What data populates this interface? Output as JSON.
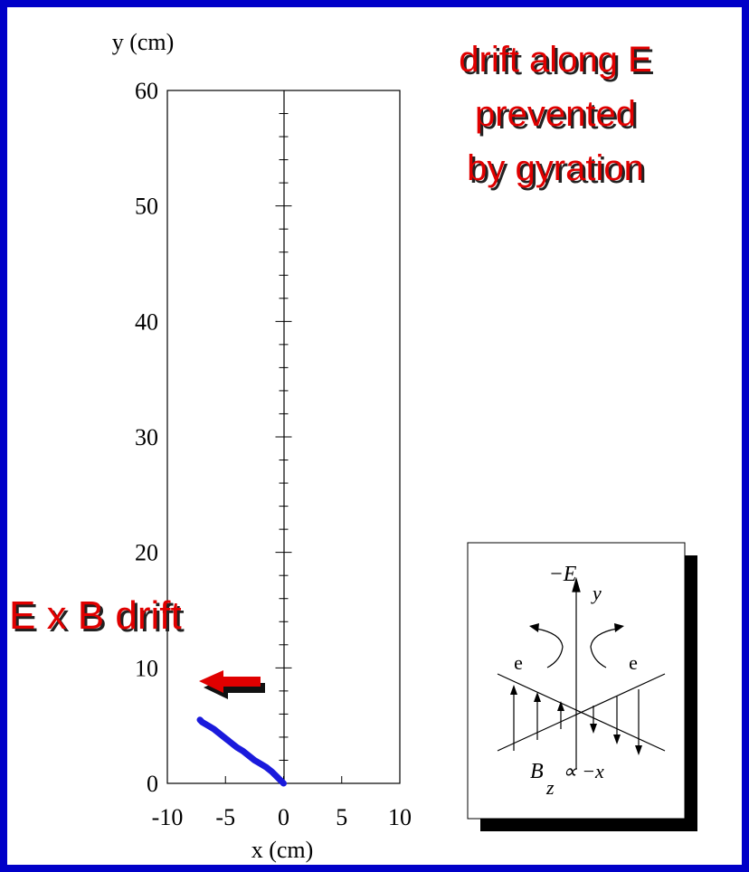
{
  "chart_data": {
    "type": "line",
    "title_lines": [
      "drift along E",
      "prevented",
      "by gyration"
    ],
    "annotation": "E x B drift",
    "xlabel": "x (cm)",
    "ylabel": "y (cm)",
    "x": [
      0,
      -0.5,
      -1,
      -1.5,
      -2,
      -2.5,
      -3,
      -3.5,
      -4,
      -4.5,
      -5,
      -5.5,
      -6,
      -6.5,
      -7,
      -7.2
    ],
    "values": [
      0,
      0.5,
      1.0,
      1.4,
      1.7,
      2.0,
      2.4,
      2.8,
      3.1,
      3.5,
      3.9,
      4.3,
      4.7,
      5.0,
      5.3,
      5.5
    ],
    "color": "#1a1adc",
    "xlim": [
      -10,
      10
    ],
    "ylim": [
      0,
      60
    ],
    "xticks": [
      -10,
      -5,
      0,
      5,
      10
    ],
    "yticks": [
      0,
      10,
      20,
      30,
      40,
      50,
      60
    ],
    "y_minor_ticks": [
      2,
      4,
      6,
      8,
      12,
      14,
      16,
      18,
      22,
      24,
      26,
      28,
      32,
      34,
      36,
      38,
      42,
      44,
      46,
      48,
      52,
      54,
      56,
      58
    ]
  },
  "inset": {
    "field_label": "−E",
    "field_sub": "y",
    "left_charge": "e",
    "right_charge": "e",
    "b_label": "B",
    "b_sub": "z",
    "b_relation": "∝ −x"
  }
}
